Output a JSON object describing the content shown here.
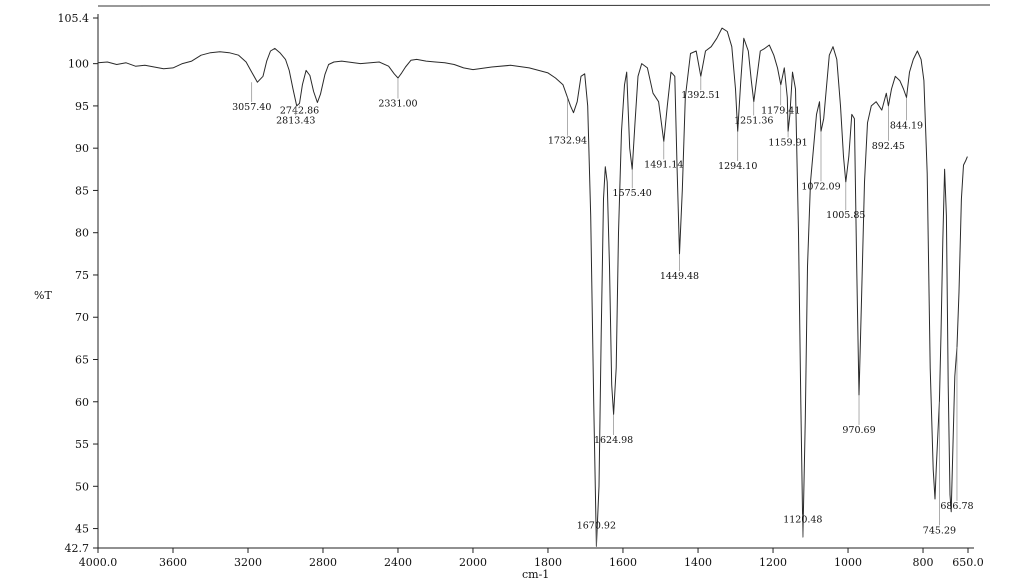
{
  "chart_data": {
    "type": "line",
    "xlabel": "cm-1",
    "ylabel": "%T",
    "xlim": [
      4000.0,
      650.0
    ],
    "ylim": [
      42.7,
      105.4
    ],
    "x_ticks": [
      "4000.0",
      "3600",
      "3200",
      "2800",
      "2400",
      "2000",
      "1800",
      "1600",
      "1400",
      "1200",
      "1000",
      "800",
      "650.0"
    ],
    "y_ticks": [
      "105.4",
      "100",
      "95",
      "90",
      "85",
      "80",
      "75",
      "70",
      "65",
      "60",
      "55",
      "50",
      "45",
      "42.7"
    ],
    "series": [
      {
        "points": [
          [
            4000,
            100.1
          ],
          [
            3950,
            100.2
          ],
          [
            3900,
            99.9
          ],
          [
            3850,
            100.1
          ],
          [
            3800,
            99.7
          ],
          [
            3750,
            99.8
          ],
          [
            3700,
            99.6
          ],
          [
            3650,
            99.4
          ],
          [
            3600,
            99.5
          ],
          [
            3550,
            100.0
          ],
          [
            3500,
            100.3
          ],
          [
            3450,
            101.0
          ],
          [
            3400,
            101.3
          ],
          [
            3350,
            101.4
          ],
          [
            3300,
            101.3
          ],
          [
            3250,
            101.0
          ],
          [
            3210,
            100.2
          ],
          [
            3180,
            99.0
          ],
          [
            3150,
            97.8
          ],
          [
            3120,
            98.5
          ],
          [
            3100,
            100.3
          ],
          [
            3080,
            101.5
          ],
          [
            3057,
            101.8
          ],
          [
            3030,
            101.3
          ],
          [
            3000,
            100.5
          ],
          [
            2980,
            99.2
          ],
          [
            2960,
            97.0
          ],
          [
            2940,
            95.0
          ],
          [
            2925,
            95.3
          ],
          [
            2910,
            97.5
          ],
          [
            2890,
            99.2
          ],
          [
            2870,
            98.6
          ],
          [
            2850,
            96.7
          ],
          [
            2830,
            95.4
          ],
          [
            2813,
            96.4
          ],
          [
            2790,
            98.7
          ],
          [
            2770,
            99.9
          ],
          [
            2742,
            100.2
          ],
          [
            2700,
            100.3
          ],
          [
            2600,
            100.0
          ],
          [
            2500,
            100.2
          ],
          [
            2450,
            99.7
          ],
          [
            2420,
            98.8
          ],
          [
            2400,
            98.3
          ],
          [
            2380,
            98.9
          ],
          [
            2360,
            99.6
          ],
          [
            2331,
            100.4
          ],
          [
            2300,
            100.5
          ],
          [
            2250,
            100.3
          ],
          [
            2200,
            100.2
          ],
          [
            2150,
            100.1
          ],
          [
            2100,
            99.9
          ],
          [
            2050,
            99.5
          ],
          [
            2000,
            99.3
          ],
          [
            1950,
            99.6
          ],
          [
            1900,
            99.8
          ],
          [
            1850,
            99.5
          ],
          [
            1800,
            98.9
          ],
          [
            1780,
            98.3
          ],
          [
            1760,
            97.5
          ],
          [
            1748,
            96.0
          ],
          [
            1740,
            95.0
          ],
          [
            1732,
            94.2
          ],
          [
            1722,
            95.5
          ],
          [
            1712,
            98.5
          ],
          [
            1702,
            98.8
          ],
          [
            1694,
            95.0
          ],
          [
            1686,
            82.0
          ],
          [
            1678,
            60.0
          ],
          [
            1670.92,
            42.9
          ],
          [
            1664,
            50.0
          ],
          [
            1658,
            68.0
          ],
          [
            1652,
            84.0
          ],
          [
            1647,
            87.8
          ],
          [
            1642,
            86.0
          ],
          [
            1636,
            76.0
          ],
          [
            1630,
            62.0
          ],
          [
            1624.98,
            58.5
          ],
          [
            1618,
            64.0
          ],
          [
            1612,
            80.0
          ],
          [
            1604,
            92.0
          ],
          [
            1596,
            97.5
          ],
          [
            1590,
            99.0
          ],
          [
            1582,
            90.0
          ],
          [
            1575.4,
            87.5
          ],
          [
            1568,
            93.0
          ],
          [
            1560,
            98.5
          ],
          [
            1550,
            100.0
          ],
          [
            1535,
            99.5
          ],
          [
            1520,
            96.5
          ],
          [
            1505,
            95.5
          ],
          [
            1491.14,
            90.8
          ],
          [
            1482,
            95.0
          ],
          [
            1472,
            99.0
          ],
          [
            1462,
            98.5
          ],
          [
            1456,
            88.0
          ],
          [
            1449.48,
            77.5
          ],
          [
            1442,
            85.0
          ],
          [
            1434,
            96.0
          ],
          [
            1420,
            101.2
          ],
          [
            1405,
            101.5
          ],
          [
            1392.51,
            98.5
          ],
          [
            1380,
            101.5
          ],
          [
            1365,
            102.0
          ],
          [
            1350,
            103.0
          ],
          [
            1336,
            104.2
          ],
          [
            1322,
            103.8
          ],
          [
            1310,
            102.0
          ],
          [
            1300,
            97.0
          ],
          [
            1294.1,
            92.0
          ],
          [
            1286,
            98.0
          ],
          [
            1278,
            103.0
          ],
          [
            1266,
            101.5
          ],
          [
            1258,
            98.0
          ],
          [
            1251.36,
            95.5
          ],
          [
            1244,
            98.0
          ],
          [
            1234,
            101.5
          ],
          [
            1222,
            101.8
          ],
          [
            1210,
            102.2
          ],
          [
            1198,
            101.0
          ],
          [
            1188,
            99.5
          ],
          [
            1179.41,
            97.5
          ],
          [
            1170,
            99.5
          ],
          [
            1162,
            96.0
          ],
          [
            1159.91,
            92.0
          ],
          [
            1155,
            94.0
          ],
          [
            1148,
            99.0
          ],
          [
            1140,
            97.0
          ],
          [
            1132,
            80.0
          ],
          [
            1126,
            60.0
          ],
          [
            1120.48,
            44.0
          ],
          [
            1114,
            58.0
          ],
          [
            1108,
            76.0
          ],
          [
            1100,
            86.0
          ],
          [
            1092,
            90.0
          ],
          [
            1084,
            94.0
          ],
          [
            1076,
            95.5
          ],
          [
            1072.09,
            92.0
          ],
          [
            1065,
            93.5
          ],
          [
            1058,
            97.0
          ],
          [
            1050,
            101.0
          ],
          [
            1040,
            102.0
          ],
          [
            1030,
            100.5
          ],
          [
            1020,
            95.0
          ],
          [
            1012,
            89.0
          ],
          [
            1005.85,
            86.0
          ],
          [
            998,
            89.0
          ],
          [
            990,
            94.0
          ],
          [
            983,
            93.5
          ],
          [
            977,
            76.0
          ],
          [
            970.69,
            60.8
          ],
          [
            964,
            72.0
          ],
          [
            956,
            86.0
          ],
          [
            948,
            93.0
          ],
          [
            938,
            95.0
          ],
          [
            925,
            95.5
          ],
          [
            910,
            94.5
          ],
          [
            898,
            96.5
          ],
          [
            892.45,
            95.0
          ],
          [
            884,
            97.0
          ],
          [
            874,
            98.5
          ],
          [
            862,
            98.0
          ],
          [
            852,
            97.0
          ],
          [
            844.19,
            96.0
          ],
          [
            836,
            99.0
          ],
          [
            826,
            100.5
          ],
          [
            815,
            101.5
          ],
          [
            805,
            100.5
          ],
          [
            797,
            98.0
          ],
          [
            786,
            87.0
          ],
          [
            776,
            64.0
          ],
          [
            766,
            52.0
          ],
          [
            760,
            48.5
          ],
          [
            756,
            52.0
          ],
          [
            745.29,
            60.0
          ],
          [
            740,
            68.0
          ],
          [
            734,
            79.0
          ],
          [
            728,
            87.5
          ],
          [
            722,
            82.0
          ],
          [
            716,
            62.0
          ],
          [
            710,
            49.0
          ],
          [
            706,
            47.0
          ],
          [
            700,
            55.0
          ],
          [
            694,
            63.0
          ],
          [
            686.78,
            66.5
          ],
          [
            680,
            73.0
          ],
          [
            672,
            84.0
          ],
          [
            665,
            88.0
          ],
          [
            658,
            88.5
          ],
          [
            652,
            89.0
          ]
        ]
      }
    ],
    "peak_labels": [
      {
        "text": "3057.40",
        "x": 3180,
        "y": 97.8,
        "ly": 95.0
      },
      {
        "text": "2742.86",
        "x": 2925,
        "y": 95.0,
        "ly": 94.6
      },
      {
        "text": "2813.43",
        "x": 2945,
        "y": 95.0,
        "ly": 93.4
      },
      {
        "text": "2331.00",
        "x": 2400,
        "y": 98.3,
        "ly": 95.4
      },
      {
        "text": "1732.94",
        "x": 1748,
        "y": 96.0,
        "ly": 91.0
      },
      {
        "text": "1670.92",
        "x": 1670.92,
        "y": 42.9,
        "ly": 45.5
      },
      {
        "text": "1624.98",
        "x": 1624.98,
        "y": 58.5,
        "ly": 55.6
      },
      {
        "text": "1575.40",
        "x": 1575.4,
        "y": 87.5,
        "ly": 84.8
      },
      {
        "text": "1491.14",
        "x": 1491.14,
        "y": 90.8,
        "ly": 88.2
      },
      {
        "text": "1449.48",
        "x": 1449.48,
        "y": 77.5,
        "ly": 75.0
      },
      {
        "text": "1392.51",
        "x": 1392.51,
        "y": 98.5,
        "ly": 96.4
      },
      {
        "text": "1294.10",
        "x": 1294.1,
        "y": 92.0,
        "ly": 88.0
      },
      {
        "text": "1251.36",
        "x": 1251.36,
        "y": 95.5,
        "ly": 93.4
      },
      {
        "text": "1179.41",
        "x": 1179.41,
        "y": 97.5,
        "ly": 94.6
      },
      {
        "text": "1159.91",
        "x": 1159.91,
        "y": 92.0,
        "ly": 90.8
      },
      {
        "text": "1120.48",
        "x": 1120.48,
        "y": 44.0,
        "ly": 46.2
      },
      {
        "text": "1072.09",
        "x": 1072.09,
        "y": 92.0,
        "ly": 85.6
      },
      {
        "text": "1005.85",
        "x": 1005.85,
        "y": 86.0,
        "ly": 82.2
      },
      {
        "text": "970.69",
        "x": 970.69,
        "y": 60.8,
        "ly": 56.8
      },
      {
        "text": "892.45",
        "x": 892.45,
        "y": 95.0,
        "ly": 90.4
      },
      {
        "text": "844.19",
        "x": 844.19,
        "y": 96.0,
        "ly": 92.8
      },
      {
        "text": "745.29",
        "x": 745.29,
        "y": 60.0,
        "ly": 44.9
      },
      {
        "text": "686.78",
        "x": 686.78,
        "y": 66.5,
        "ly": 47.8
      }
    ],
    "grid": false,
    "line_color": "#2a2a2a"
  }
}
